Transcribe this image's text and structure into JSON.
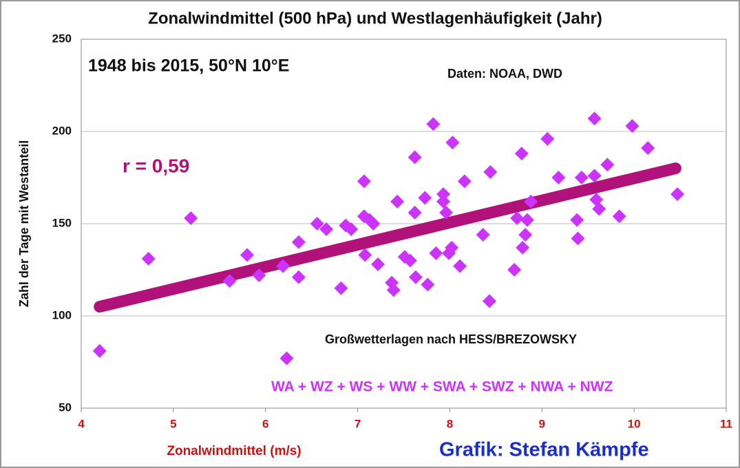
{
  "chart_data": {
    "type": "scatter",
    "title": "Zonalwindmittel  (500 hPa) und Westlagenhäufigkeit  (Jahr)",
    "x_label": "Zonalwindmittel  (m/s)",
    "y_label": "Zahl der Tage mit Westanteil",
    "annotations": [
      "1948 bis 2015, 50°N 10°E",
      "Daten: NOAA, DWD",
      "r = 0,59",
      "Großwetterlagen nach HESS/BREZOWSKY",
      "WA + WZ + WS + WW + SWA + SWZ + NWA + NWZ",
      "Grafik: Stefan Kämpfe"
    ],
    "x": [
      4.2,
      4.73,
      5.19,
      5.61,
      5.8,
      5.93,
      6.19,
      6.23,
      6.36,
      6.36,
      6.56,
      6.66,
      6.82,
      6.87,
      6.93,
      7.07,
      7.07,
      7.08,
      7.13,
      7.17,
      7.22,
      7.37,
      7.39,
      7.43,
      7.51,
      7.57,
      7.62,
      7.62,
      7.63,
      7.73,
      7.76,
      7.82,
      7.85,
      7.93,
      7.93,
      7.96,
      7.99,
      8.02,
      8.03,
      8.11,
      8.16,
      8.36,
      8.44,
      8.43,
      8.7,
      8.73,
      8.78,
      8.79,
      8.82,
      8.84,
      8.88,
      9.06,
      9.18,
      9.38,
      9.39,
      9.43,
      9.57,
      9.57,
      9.59,
      9.62,
      9.71,
      9.84,
      9.98,
      10.15,
      10.47
    ],
    "values": [
      81,
      131,
      153,
      119,
      133,
      122,
      127,
      77,
      140,
      121,
      150,
      147,
      115,
      149,
      147,
      173,
      154,
      133,
      152,
      150,
      128,
      118,
      114,
      162,
      132,
      130,
      156,
      186,
      121,
      164,
      117,
      204,
      134,
      166,
      162,
      156,
      134,
      137,
      194,
      127,
      173,
      144,
      178,
      108,
      125,
      153,
      188,
      137,
      144,
      152,
      162,
      196,
      175,
      152,
      142,
      175,
      207,
      176,
      163,
      158,
      182,
      154,
      203,
      191,
      166
    ],
    "color": "#cc33ff",
    "trendline": {
      "x": [
        4.2,
        10.45
      ],
      "values": [
        105,
        180
      ],
      "color": "#b0127a"
    },
    "xlim": [
      4,
      11
    ],
    "xticks": [
      4,
      5,
      6,
      7,
      8,
      9,
      10,
      11
    ],
    "ylim": [
      50,
      250
    ],
    "yticks": [
      50,
      100,
      150,
      200,
      250
    ],
    "grid": true
  }
}
